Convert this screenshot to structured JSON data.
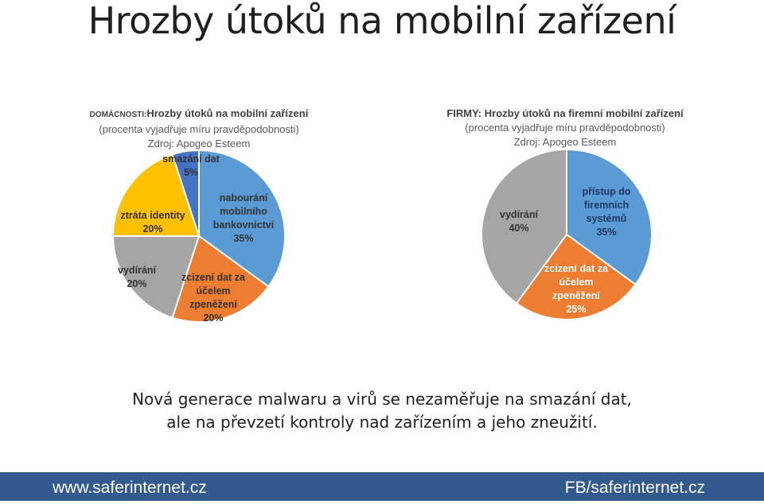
{
  "slide": {
    "title": "Hrozby útoků na mobilní zařízení",
    "bottom_line1": "Nová generace malwaru a virů se nezaměřuje na smazání dat,",
    "bottom_line2": "ale na převzetí kontroly nad zařízením a jeho zneužití."
  },
  "footer": {
    "left": "www.saferinternet.cz",
    "right": "FB/saferinternet.cz",
    "bg_color": "#335a8f"
  },
  "chart_data": [
    {
      "type": "pie",
      "title_prefix": "DOMÁCNOSTI:",
      "title": "Hrozby útoků na mobilní zařízení",
      "subtitle": "(procenta vyjadřuje míru pravděpodobnosti)",
      "source": "Zdroj: Apogeo Esteem",
      "slices": [
        {
          "label_lines": [
            "nabourání",
            "mobilního",
            "bankovnictví",
            "35%"
          ],
          "value": 35,
          "color": "#5b9bd5",
          "text_color": "#333333"
        },
        {
          "label_lines": [
            "zcizení dat za",
            "účelem",
            "zpeněžení",
            "20%"
          ],
          "value": 20,
          "color": "#ed7d31",
          "text_color": "#333333"
        },
        {
          "label_lines": [
            "vydírání",
            "20%"
          ],
          "value": 20,
          "color": "#a5a5a5",
          "text_color": "#333333"
        },
        {
          "label_lines": [
            "ztráta identity",
            "20%"
          ],
          "value": 20,
          "color": "#ffc000",
          "text_color": "#333333"
        },
        {
          "label_lines": [
            "smazání dat",
            "5%"
          ],
          "value": 5,
          "color": "#4472c4",
          "text_color": "#333333"
        }
      ]
    },
    {
      "type": "pie",
      "title_prefix": "",
      "title": "FIRMY: Hrozby útoků na firemní mobilní zařízení",
      "subtitle": "(procenta vyjadřuje míru pravděpodobnosti)",
      "source": "Zdroj: Apogeo Esteem",
      "slices": [
        {
          "label_lines": [
            "přístup do",
            "firemních",
            "systémů",
            "35%"
          ],
          "value": 35,
          "color": "#5b9bd5",
          "text_color": "#1f3864"
        },
        {
          "label_lines": [
            "zcizení dat za",
            "účelem",
            "zpeněžení",
            "25%"
          ],
          "value": 25,
          "color": "#ed7d31",
          "text_color": "#ffffff"
        },
        {
          "label_lines": [
            "vydírání",
            "40%"
          ],
          "value": 40,
          "color": "#a5a5a5",
          "text_color": "#333333"
        }
      ]
    }
  ]
}
